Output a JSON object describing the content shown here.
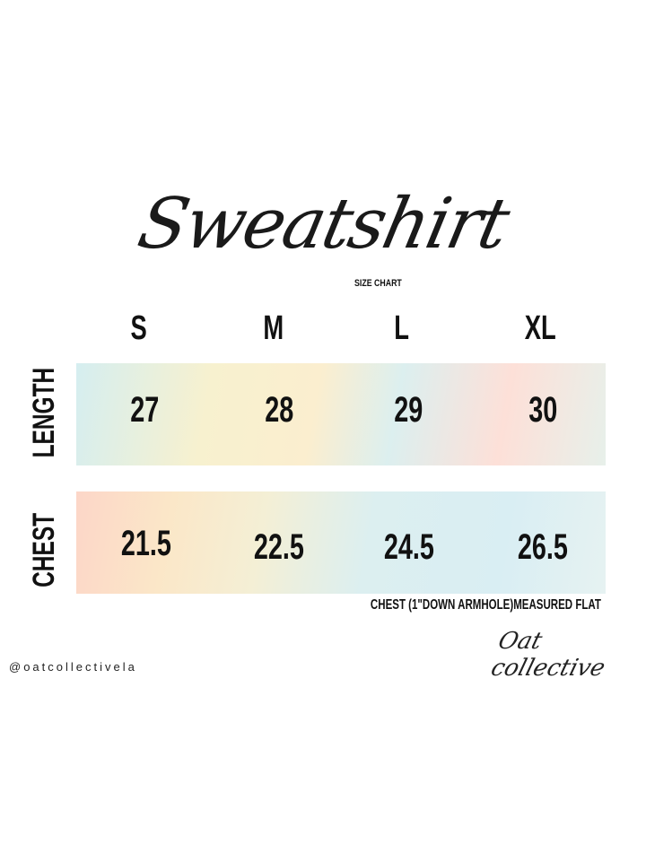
{
  "title": "Sweatshirt",
  "subtitle": "SIZE CHART",
  "sizes": [
    "S",
    "M",
    "L",
    "XL"
  ],
  "rows": [
    {
      "label": "LENGTH",
      "values": [
        "27",
        "28",
        "29",
        "30"
      ]
    },
    {
      "label": "CHEST",
      "values": [
        "21.5",
        "22.5",
        "24.5",
        "26.5"
      ]
    }
  ],
  "note": "CHEST (1\"DOWN ARMHOLE)MEASURED FLAT",
  "social_handle": "@oatcollectivela",
  "logo_text": "Oat collective",
  "colors": {
    "text": "#111111",
    "band_pastel_blue": "#d9eef2",
    "band_pastel_yellow": "#f7f1cf",
    "band_pastel_pink": "#fcd6c8"
  }
}
